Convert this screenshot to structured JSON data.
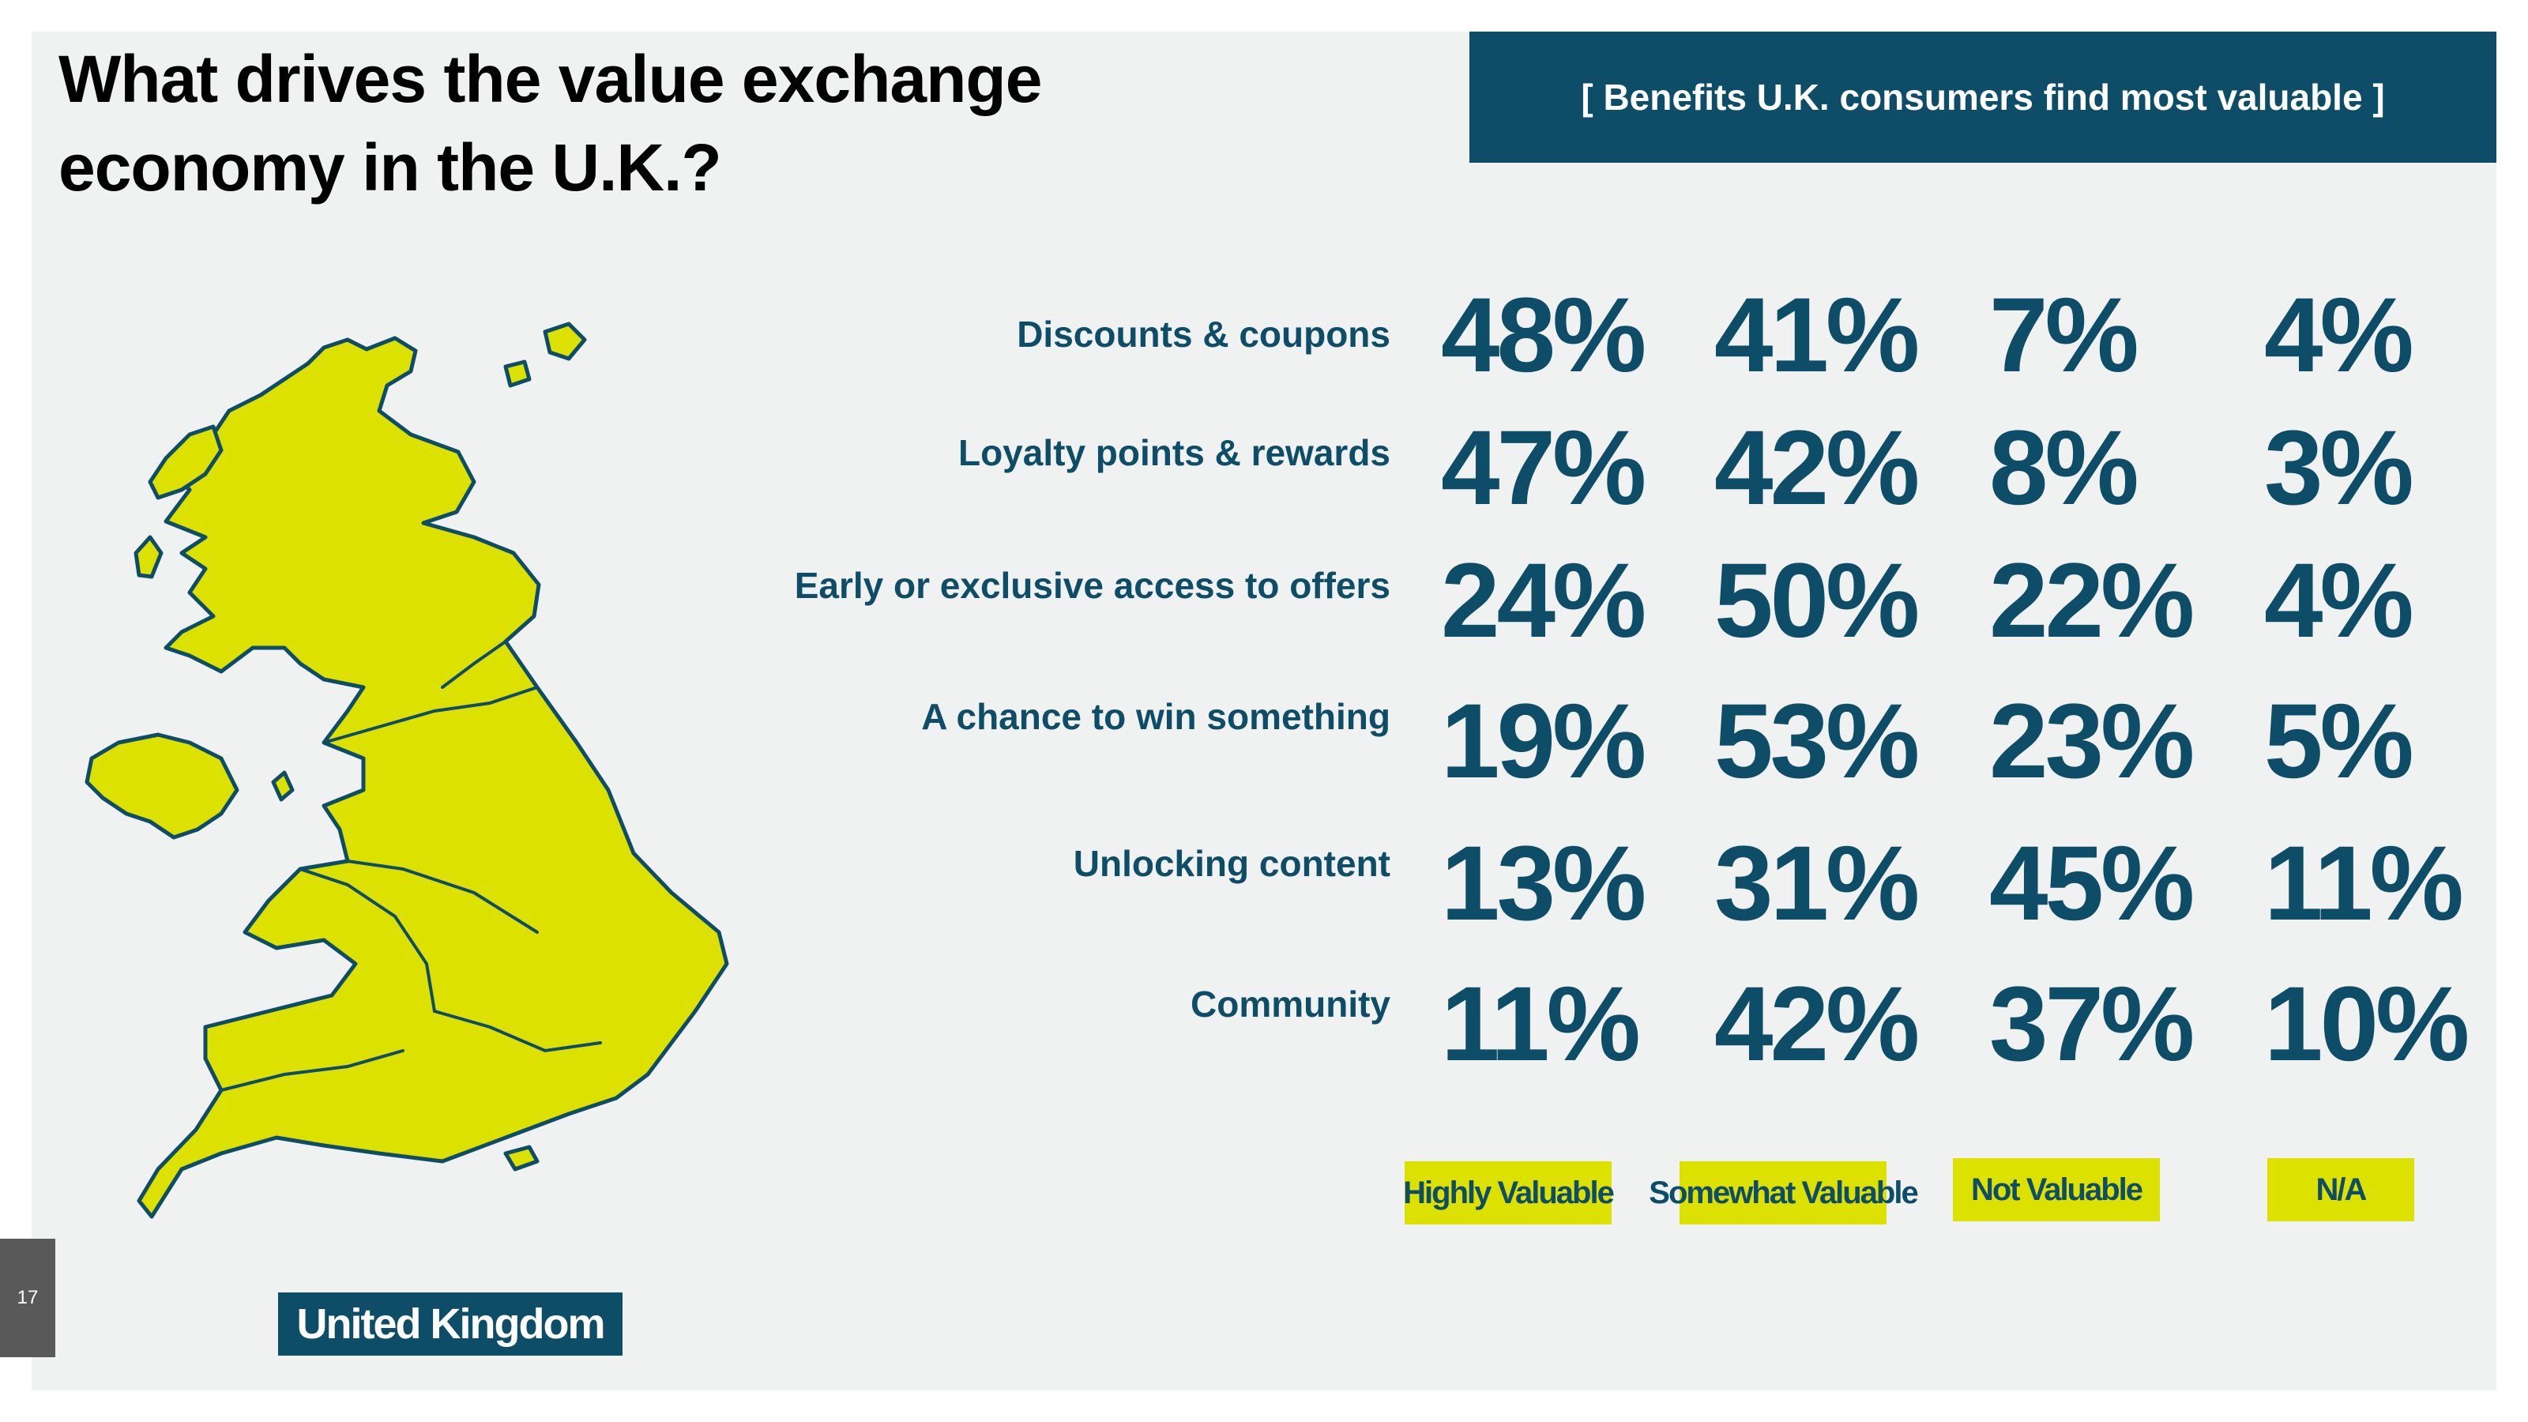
{
  "title_line1": "What drives the value exchange",
  "title_line2": "economy in the U.K.?",
  "banner": "[ Benefits U.K. consumers find most valuable ]",
  "country_label": "United Kingdom",
  "page_number": "17",
  "colors": {
    "accent": "#0e4d67",
    "highlight": "#dde100",
    "background": "#f0f1f1"
  },
  "legend": [
    "Highly Valuable",
    "Somewhat Valuable",
    "Not Valuable",
    "N/A"
  ],
  "rows": [
    {
      "label": "Discounts & coupons",
      "values": [
        "48%",
        "41%",
        "7%",
        "4%"
      ]
    },
    {
      "label": "Loyalty points & rewards",
      "values": [
        "47%",
        "42%",
        "8%",
        "3%"
      ]
    },
    {
      "label": "Early or exclusive access to offers",
      "values": [
        "24%",
        "50%",
        "22%",
        "4%"
      ]
    },
    {
      "label": "A chance to win something",
      "values": [
        "19%",
        "53%",
        "23%",
        "5%"
      ]
    },
    {
      "label": "Unlocking content",
      "values": [
        "13%",
        "31%",
        "45%",
        "11%"
      ]
    },
    {
      "label": "Community",
      "values": [
        "11%",
        "42%",
        "37%",
        "10%"
      ]
    }
  ]
}
